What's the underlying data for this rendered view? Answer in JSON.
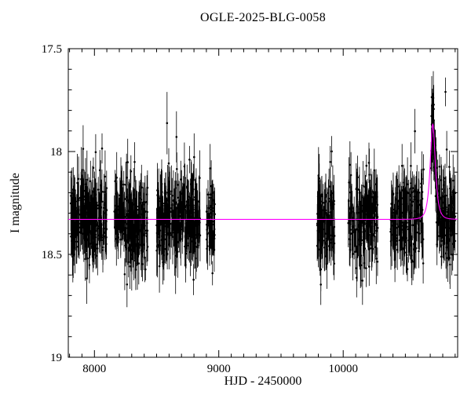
{
  "chart_data": {
    "type": "scatter",
    "title": "OGLE-2025-BLG-0058",
    "xlabel": "HJD - 2450000",
    "ylabel": "I magnitude",
    "xlim": [
      7790,
      10920
    ],
    "ylim_mag": [
      19,
      17.5
    ],
    "x_tick_values": [
      8000,
      9000,
      10000
    ],
    "x_tick_labels": [
      "8000",
      "9000",
      "10000"
    ],
    "x_minor_step": 100,
    "y_tick_values": [
      17.5,
      18,
      18.5,
      19
    ],
    "y_tick_labels": [
      "17.5",
      "18",
      "18.5",
      "19"
    ],
    "y_minor_step": 0.1,
    "grid": false,
    "legend": null,
    "colors": {
      "points": "#000000",
      "model_curve": "#ff00ff",
      "background": "#ffffff",
      "axes": "#000000"
    },
    "baseline_mag": 18.33,
    "model": {
      "type": "paczynski-microlensing",
      "t0": 10720,
      "tE": 28,
      "u0": 0.8,
      "peak_mag": 17.86
    },
    "seasons": [
      {
        "x_start": 7810,
        "x_end": 8100,
        "n_points": 260,
        "scatter": 0.085
      },
      {
        "x_start": 8160,
        "x_end": 8430,
        "n_points": 240,
        "scatter": 0.085
      },
      {
        "x_start": 8500,
        "x_end": 8850,
        "n_points": 310,
        "scatter": 0.085
      },
      {
        "x_start": 8900,
        "x_end": 8970,
        "n_points": 55,
        "scatter": 0.085
      },
      {
        "x_start": 9790,
        "x_end": 9930,
        "n_points": 120,
        "scatter": 0.095
      },
      {
        "x_start": 10040,
        "x_end": 10280,
        "n_points": 180,
        "scatter": 0.095
      },
      {
        "x_start": 10380,
        "x_end": 10650,
        "n_points": 200,
        "scatter": 0.09
      },
      {
        "x_start": 10705,
        "x_end": 10900,
        "n_points": 170,
        "scatter": 0.085
      }
    ],
    "outliers": [
      {
        "x": 10822,
        "mag": 17.71,
        "err": 0.07
      },
      {
        "x": 10832,
        "mag": 17.99,
        "err": 0.09
      }
    ],
    "error_bar_range": [
      0.05,
      0.17
    ]
  }
}
